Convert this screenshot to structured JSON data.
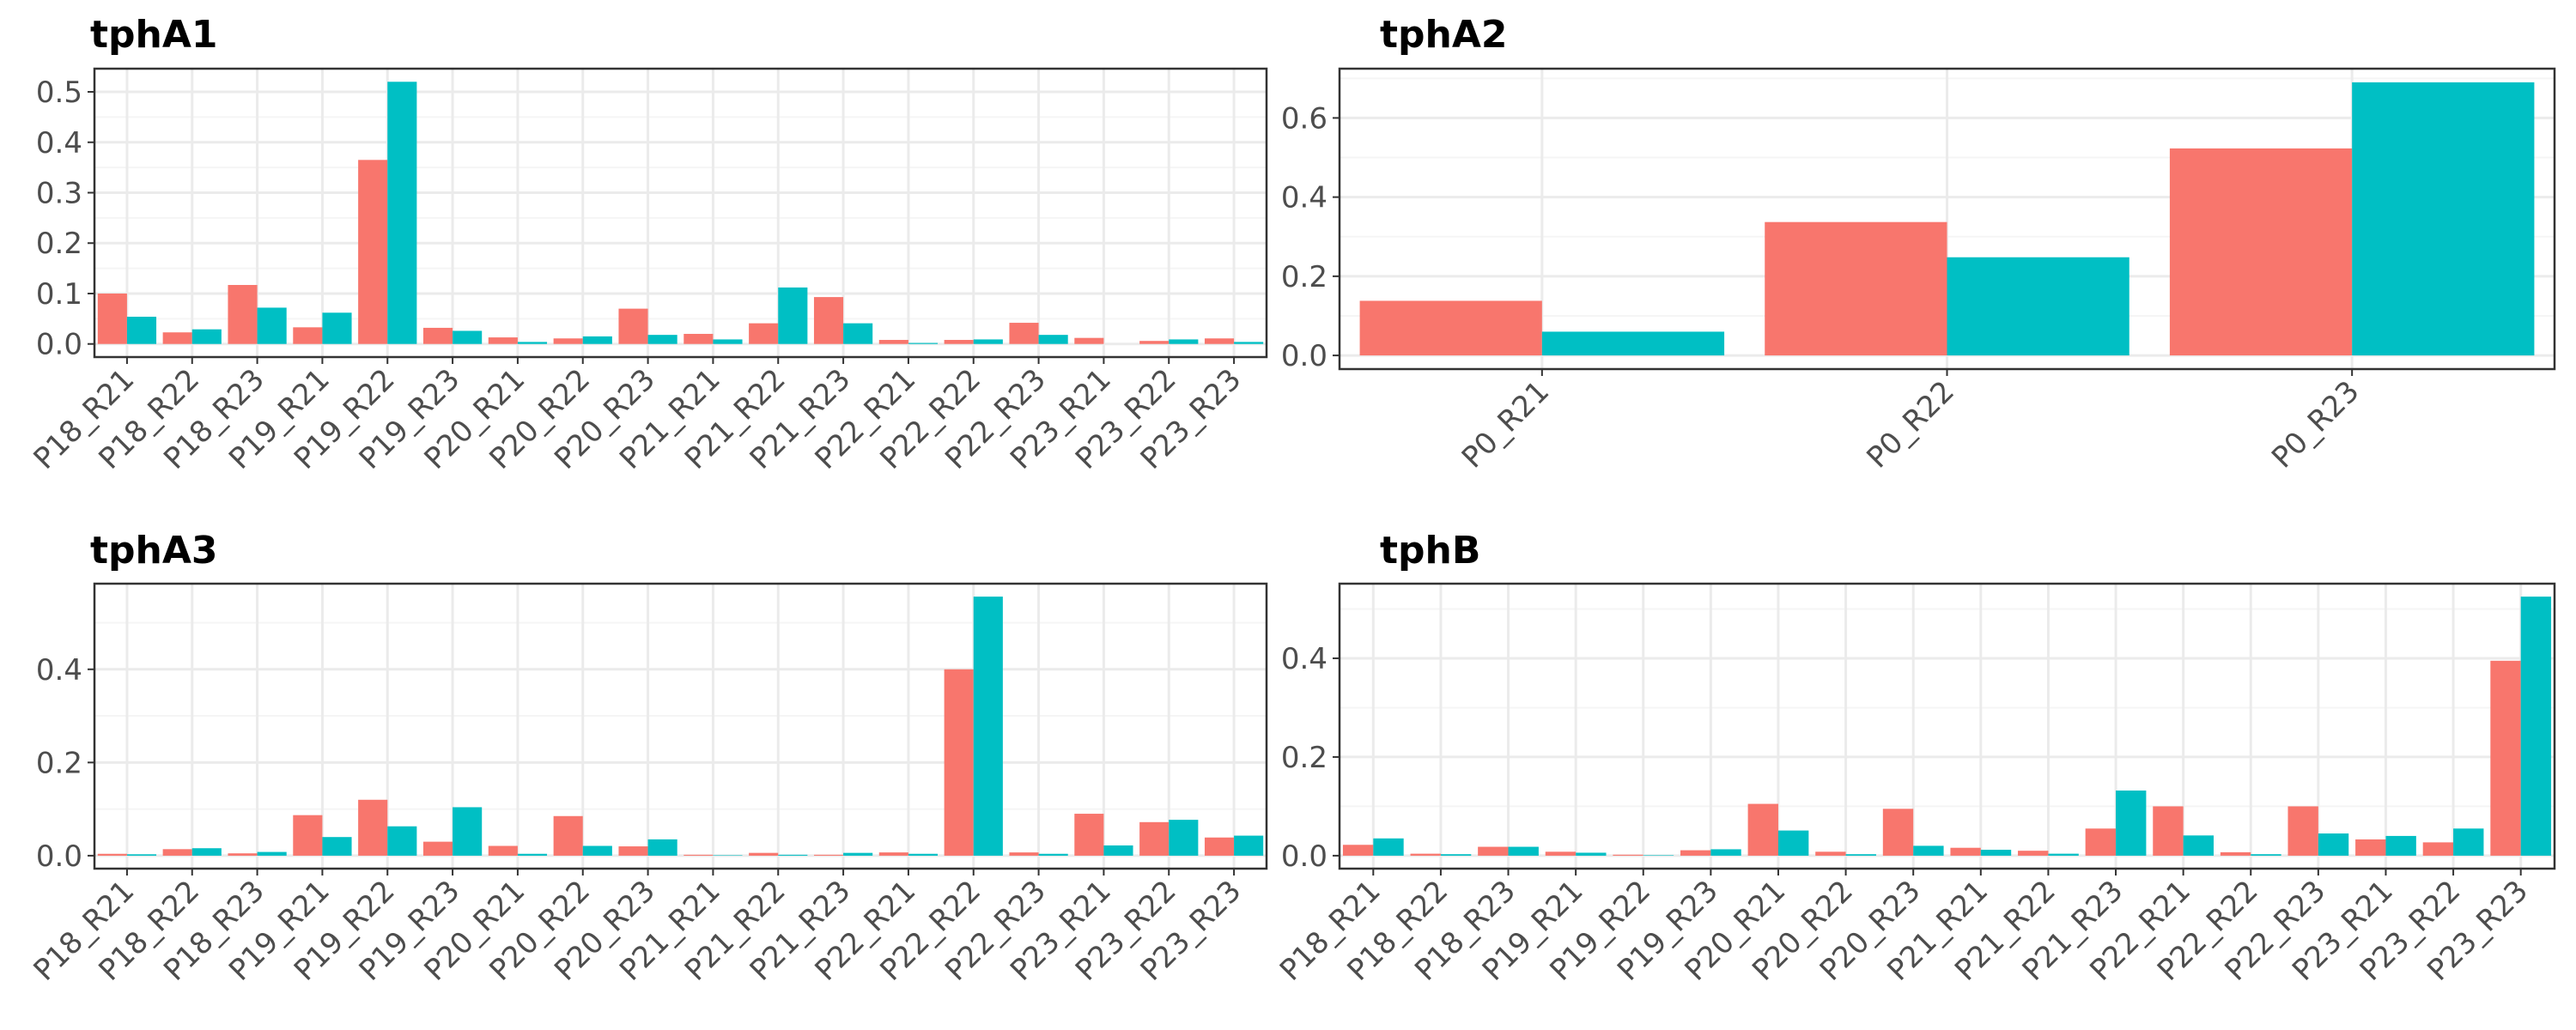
{
  "colors": {
    "series1": "#F8766D",
    "series2": "#00BFC4",
    "grid_major": "#EBEBEB",
    "grid_minor": "#F5F5F5",
    "border": "#333333"
  },
  "chart_data": [
    {
      "type": "bar",
      "title": "tphA1",
      "categories": [
        "P18_R21",
        "P18_R22",
        "P18_R23",
        "P19_R21",
        "P19_R22",
        "P19_R23",
        "P20_R21",
        "P20_R22",
        "P20_R23",
        "P21_R21",
        "P21_R22",
        "P21_R23",
        "P22_R21",
        "P22_R22",
        "P22_R23",
        "P23_R21",
        "P23_R22",
        "P23_R23"
      ],
      "series": [
        {
          "values": [
            0.1,
            0.023,
            0.117,
            0.033,
            0.365,
            0.032,
            0.013,
            0.011,
            0.07,
            0.02,
            0.041,
            0.093,
            0.008,
            0.008,
            0.042,
            0.012,
            0.006,
            0.011
          ]
        },
        {
          "values": [
            0.054,
            0.029,
            0.072,
            0.062,
            0.52,
            0.026,
            0.004,
            0.015,
            0.018,
            0.009,
            0.112,
            0.041,
            0.002,
            0.009,
            0.018,
            0.0,
            0.009,
            0.004
          ]
        }
      ],
      "yticks": [
        0.0,
        0.1,
        0.2,
        0.3,
        0.4,
        0.5
      ],
      "tick_labels": [
        "0.0",
        "0.1",
        "0.2",
        "0.3",
        "0.4",
        "0.5"
      ],
      "ylim": [
        -0.026,
        0.546
      ],
      "grid": true
    },
    {
      "type": "bar",
      "title": "tphA2",
      "categories": [
        "P0_R21",
        "P0_R22",
        "P0_R23"
      ],
      "series": [
        {
          "values": [
            0.138,
            0.337,
            0.523
          ]
        },
        {
          "values": [
            0.06,
            0.248,
            0.69
          ]
        }
      ],
      "yticks": [
        0.0,
        0.2,
        0.4,
        0.6
      ],
      "tick_labels": [
        "0.0",
        "0.2",
        "0.4",
        "0.6"
      ],
      "ylim": [
        -0.0345,
        0.7245
      ],
      "grid": true
    },
    {
      "type": "bar",
      "title": "tphA3",
      "categories": [
        "P18_R21",
        "P18_R22",
        "P18_R23",
        "P19_R21",
        "P19_R22",
        "P19_R23",
        "P20_R21",
        "P20_R22",
        "P20_R23",
        "P21_R21",
        "P21_R22",
        "P21_R23",
        "P22_R21",
        "P22_R22",
        "P22_R23",
        "P23_R21",
        "P23_R22",
        "P23_R23"
      ],
      "series": [
        {
          "values": [
            0.004,
            0.014,
            0.005,
            0.087,
            0.12,
            0.03,
            0.021,
            0.085,
            0.02,
            0.002,
            0.006,
            0.002,
            0.007,
            0.4,
            0.007,
            0.09,
            0.072,
            0.039
          ]
        },
        {
          "values": [
            0.003,
            0.016,
            0.008,
            0.04,
            0.063,
            0.104,
            0.004,
            0.021,
            0.035,
            0.001,
            0.002,
            0.006,
            0.004,
            0.556,
            0.004,
            0.022,
            0.077,
            0.043
          ]
        }
      ],
      "yticks": [
        0.0,
        0.2,
        0.4
      ],
      "tick_labels": [
        "0.0",
        "0.2",
        "0.4"
      ],
      "ylim": [
        -0.0278,
        0.5838
      ],
      "grid": true
    },
    {
      "type": "bar",
      "title": "tphB",
      "categories": [
        "P18_R21",
        "P18_R22",
        "P18_R23",
        "P19_R21",
        "P19_R22",
        "P19_R23",
        "P20_R21",
        "P20_R22",
        "P20_R23",
        "P21_R21",
        "P21_R22",
        "P21_R23",
        "P22_R21",
        "P22_R22",
        "P22_R23",
        "P23_R21",
        "P23_R22",
        "P23_R23"
      ],
      "series": [
        {
          "values": [
            0.022,
            0.004,
            0.018,
            0.008,
            0.002,
            0.011,
            0.105,
            0.008,
            0.095,
            0.016,
            0.01,
            0.055,
            0.1,
            0.007,
            0.1,
            0.033,
            0.027,
            0.395
          ]
        },
        {
          "values": [
            0.035,
            0.003,
            0.018,
            0.006,
            0.001,
            0.013,
            0.051,
            0.003,
            0.02,
            0.012,
            0.004,
            0.132,
            0.041,
            0.003,
            0.045,
            0.04,
            0.055,
            0.525
          ]
        }
      ],
      "yticks": [
        0.0,
        0.2,
        0.4
      ],
      "tick_labels": [
        "0.0",
        "0.2",
        "0.4"
      ],
      "ylim": [
        -0.02625,
        0.55125
      ],
      "grid": true
    }
  ]
}
